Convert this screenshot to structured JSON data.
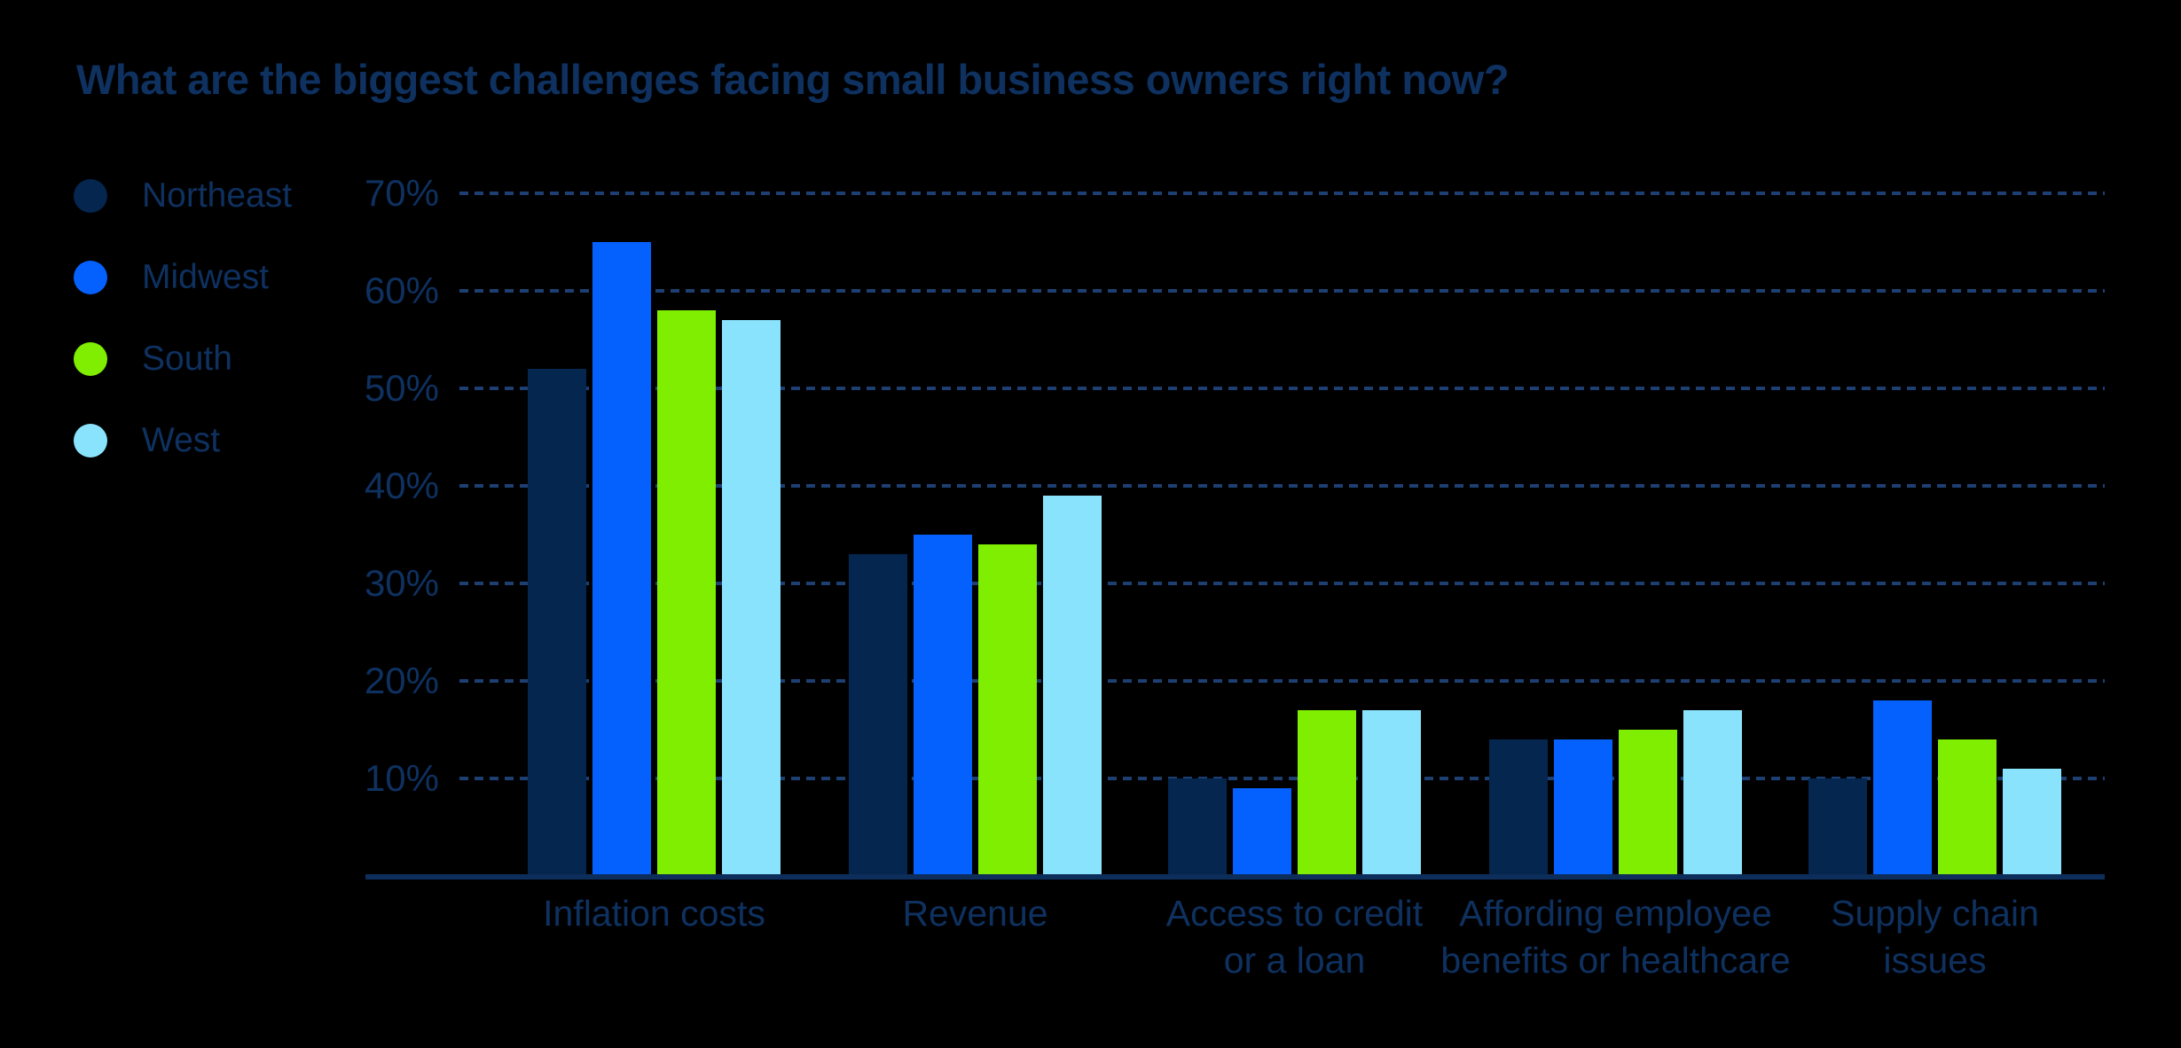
{
  "title": "What are the biggest challenges facing small business owners right now?",
  "colors": {
    "background": "#000000",
    "text_navy": "#0e3160",
    "gridline": "#1e3f72",
    "axis_line": "#0d2d5a"
  },
  "chart_data": {
    "type": "bar",
    "title": "What are the biggest challenges facing small business owners right now?",
    "categories": [
      "Inflation costs",
      "Revenue",
      "Access to credit or a loan",
      "Affording employee benefits or healthcare",
      "Supply chain issues"
    ],
    "category_label_lines": [
      [
        "Inflation costs"
      ],
      [
        "Revenue"
      ],
      [
        "Access to credit",
        "or a loan"
      ],
      [
        "Affording employee",
        "benefits or healthcare"
      ],
      [
        "Supply chain",
        "issues"
      ]
    ],
    "series": [
      {
        "name": "Northeast",
        "color": "#04264f",
        "values": [
          52,
          33,
          10,
          14,
          10
        ]
      },
      {
        "name": "Midwest",
        "color": "#0561fe",
        "values": [
          65,
          35,
          9,
          14,
          18
        ]
      },
      {
        "name": "South",
        "color": "#7fee00",
        "values": [
          58,
          34,
          17,
          15,
          14
        ]
      },
      {
        "name": "West",
        "color": "#8ae3fc",
        "values": [
          57,
          39,
          17,
          17,
          11
        ]
      }
    ],
    "value_unit": "%",
    "xlabel": "",
    "ylabel": "",
    "ylim": [
      0,
      70
    ],
    "y_ticks": [
      "10%",
      "20%",
      "30%",
      "40%",
      "50%",
      "60%",
      "70%"
    ],
    "grid": "horizontal-dashed",
    "legend_position": "left"
  }
}
